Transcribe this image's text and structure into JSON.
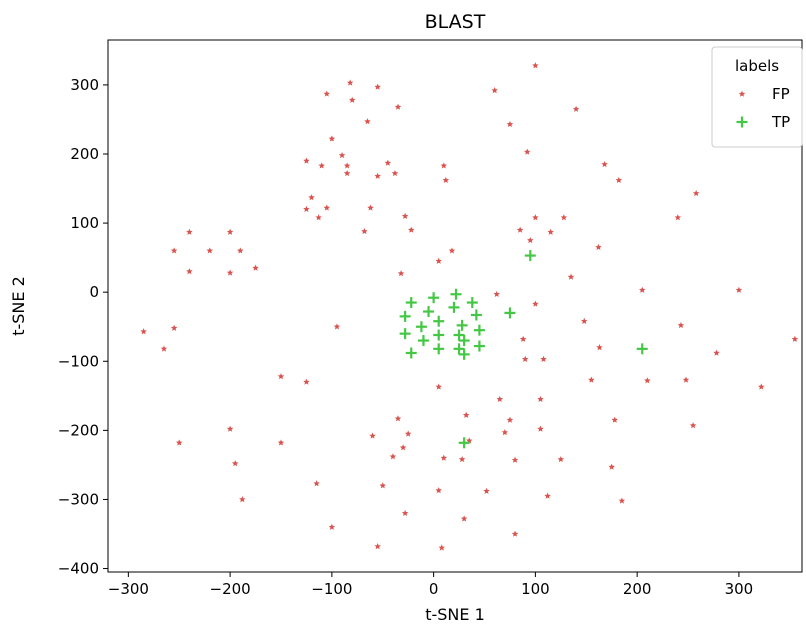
{
  "chart_data": {
    "type": "scatter",
    "title": "BLAST",
    "xlabel": "t-SNE 1",
    "ylabel": "t-SNE 2",
    "xlim": [
      -320,
      362
    ],
    "ylim": [
      -405,
      365
    ],
    "xticks": [
      -300,
      -200,
      -100,
      0,
      100,
      200,
      300
    ],
    "yticks": [
      -400,
      -300,
      -200,
      -100,
      0,
      100,
      200,
      300
    ],
    "xtick_labels": [
      "−300",
      "−200",
      "−100",
      "0",
      "100",
      "200",
      "300"
    ],
    "ytick_labels": [
      "−400",
      "−300",
      "−200",
      "−100",
      "0",
      "100",
      "200",
      "300"
    ],
    "grid": false,
    "legend": {
      "title": "labels",
      "placement": "top-right"
    },
    "series": [
      {
        "name": "FP",
        "color": "#d9534f",
        "marker": "star",
        "points": [
          [
            -285,
            -57
          ],
          [
            -265,
            -82
          ],
          [
            -255,
            60
          ],
          [
            -255,
            -52
          ],
          [
            -250,
            -218
          ],
          [
            -240,
            87
          ],
          [
            -240,
            30
          ],
          [
            -220,
            60
          ],
          [
            -200,
            87
          ],
          [
            -200,
            28
          ],
          [
            -200,
            -198
          ],
          [
            -195,
            -248
          ],
          [
            -190,
            60
          ],
          [
            -188,
            -300
          ],
          [
            -175,
            35
          ],
          [
            -150,
            -122
          ],
          [
            -150,
            -218
          ],
          [
            -125,
            190
          ],
          [
            -125,
            120
          ],
          [
            -125,
            -130
          ],
          [
            -120,
            137
          ],
          [
            -115,
            -277
          ],
          [
            -113,
            108
          ],
          [
            -110,
            183
          ],
          [
            -105,
            287
          ],
          [
            -105,
            122
          ],
          [
            -100,
            222
          ],
          [
            -100,
            -340
          ],
          [
            -95,
            -50
          ],
          [
            -90,
            198
          ],
          [
            -85,
            172
          ],
          [
            -85,
            183
          ],
          [
            -82,
            303
          ],
          [
            -80,
            278
          ],
          [
            -68,
            88
          ],
          [
            -65,
            247
          ],
          [
            -62,
            122
          ],
          [
            -60,
            -208
          ],
          [
            -55,
            168
          ],
          [
            -55,
            297
          ],
          [
            -55,
            -368
          ],
          [
            -50,
            -280
          ],
          [
            -45,
            187
          ],
          [
            -40,
            -238
          ],
          [
            -38,
            172
          ],
          [
            -35,
            268
          ],
          [
            -35,
            -183
          ],
          [
            -32,
            27
          ],
          [
            -30,
            -225
          ],
          [
            -28,
            110
          ],
          [
            -28,
            -320
          ],
          [
            -25,
            -205
          ],
          [
            -22,
            90
          ],
          [
            5,
            45
          ],
          [
            5,
            -137
          ],
          [
            5,
            -287
          ],
          [
            8,
            -370
          ],
          [
            10,
            183
          ],
          [
            10,
            -240
          ],
          [
            12,
            162
          ],
          [
            18,
            60
          ],
          [
            28,
            -242
          ],
          [
            30,
            -328
          ],
          [
            32,
            -178
          ],
          [
            35,
            -215
          ],
          [
            52,
            -288
          ],
          [
            60,
            292
          ],
          [
            62,
            -3
          ],
          [
            65,
            -155
          ],
          [
            70,
            -203
          ],
          [
            75,
            -185
          ],
          [
            75,
            243
          ],
          [
            80,
            -243
          ],
          [
            80,
            -350
          ],
          [
            85,
            90
          ],
          [
            88,
            -68
          ],
          [
            90,
            -97
          ],
          [
            92,
            203
          ],
          [
            95,
            75
          ],
          [
            100,
            -17
          ],
          [
            100,
            328
          ],
          [
            100,
            108
          ],
          [
            105,
            -155
          ],
          [
            105,
            -198
          ],
          [
            108,
            -97
          ],
          [
            112,
            -295
          ],
          [
            115,
            87
          ],
          [
            125,
            -242
          ],
          [
            128,
            108
          ],
          [
            135,
            22
          ],
          [
            140,
            265
          ],
          [
            148,
            -42
          ],
          [
            155,
            -127
          ],
          [
            162,
            65
          ],
          [
            163,
            -80
          ],
          [
            168,
            185
          ],
          [
            175,
            -253
          ],
          [
            178,
            -185
          ],
          [
            182,
            162
          ],
          [
            185,
            -302
          ],
          [
            205,
            3
          ],
          [
            210,
            -128
          ],
          [
            240,
            108
          ],
          [
            243,
            -48
          ],
          [
            248,
            -127
          ],
          [
            255,
            -193
          ],
          [
            258,
            143
          ],
          [
            278,
            -88
          ],
          [
            300,
            3
          ],
          [
            322,
            -137
          ],
          [
            355,
            -68
          ]
        ]
      },
      {
        "name": "TP",
        "color": "#44c744",
        "marker": "plus",
        "points": [
          [
            -28,
            -35
          ],
          [
            -28,
            -60
          ],
          [
            -22,
            -15
          ],
          [
            -22,
            -88
          ],
          [
            -12,
            -50
          ],
          [
            -10,
            -70
          ],
          [
            -5,
            -28
          ],
          [
            0,
            -8
          ],
          [
            5,
            -42
          ],
          [
            5,
            -62
          ],
          [
            5,
            -82
          ],
          [
            20,
            -22
          ],
          [
            22,
            -3
          ],
          [
            25,
            -62
          ],
          [
            25,
            -82
          ],
          [
            28,
            -48
          ],
          [
            30,
            -70
          ],
          [
            30,
            -90
          ],
          [
            38,
            -15
          ],
          [
            42,
            -33
          ],
          [
            45,
            -55
          ],
          [
            45,
            -78
          ],
          [
            30,
            -218
          ],
          [
            75,
            -30
          ],
          [
            95,
            53
          ],
          [
            205,
            -82
          ]
        ]
      }
    ]
  }
}
